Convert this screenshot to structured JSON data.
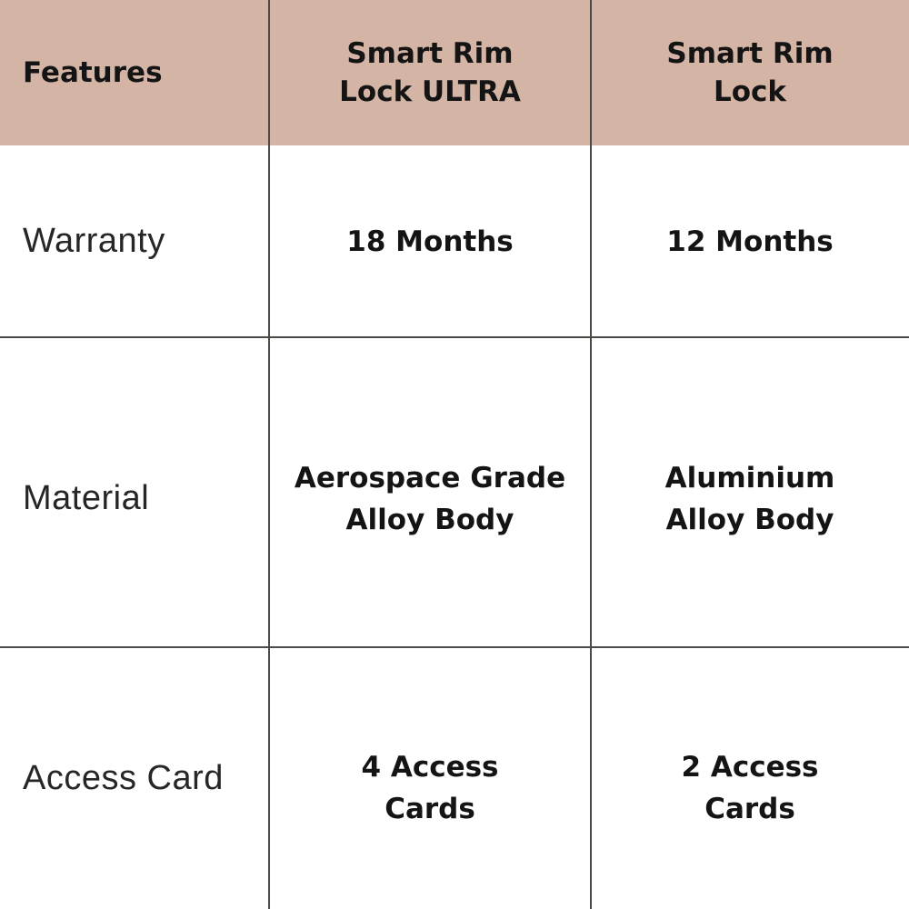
{
  "table": {
    "header": {
      "features_label": "Features",
      "ultra_title": "Smart Rim\nLock ULTRA",
      "standard_title": "Smart Rim\nLock"
    },
    "rows": [
      {
        "feature": "Warranty",
        "ultra": "18 Months",
        "standard": "12 Months"
      },
      {
        "feature": "Material",
        "ultra": "Aerospace Grade\nAlloy Body",
        "standard": "Aluminium\nAlloy Body"
      },
      {
        "feature": "Access Card",
        "ultra": "4 Access\nCards",
        "standard": "2 Access\nCards"
      }
    ]
  },
  "colors": {
    "header_bg": "#d4b5a5",
    "grid_line": "#4a4a46",
    "text_dark": "#141414",
    "label_color": "#262626",
    "cell_bg": "#ffffff"
  },
  "chart_data": {
    "type": "table",
    "title": "Smart Rim Lock comparison",
    "columns": [
      "Features",
      "Smart Rim Lock ULTRA",
      "Smart Rim Lock"
    ],
    "rows": [
      [
        "Warranty",
        "18 Months",
        "12 Months"
      ],
      [
        "Material",
        "Aerospace Grade Alloy Body",
        "Aluminium Alloy Body"
      ],
      [
        "Access Card",
        "4 Access Cards",
        "2 Access Cards"
      ]
    ]
  }
}
